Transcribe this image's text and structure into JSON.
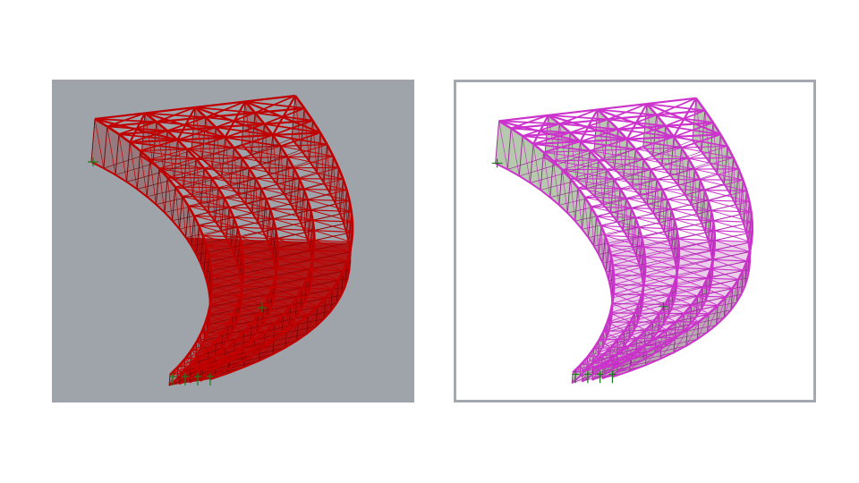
{
  "views": [
    {
      "id": "left",
      "name": "red-render-view",
      "background": "#9fa3aa",
      "member_color": "#c00000",
      "member_dark": "#7a0000",
      "panel_fill": "#8a2d2d",
      "panel_opacity": 0.35,
      "shell_fill": "#b00000",
      "shell_opacity": 0.85,
      "support_color": "#1a7a1a"
    },
    {
      "id": "right",
      "name": "magenta-analysis-view",
      "background": "#ffffff",
      "border_color": "#a4a9b0",
      "member_color": "#cc33cc",
      "member_dark": "#9a1f9a",
      "panel_fill": "#7a9a6a",
      "panel_opacity": 0.55,
      "shell_fill": "#c070c0",
      "shell_opacity": 0.35,
      "support_color": "#1a7a1a"
    }
  ],
  "structure": {
    "description_icon": "curved-truss-bridge-icon",
    "arch_count": 4,
    "support_count": 4
  }
}
